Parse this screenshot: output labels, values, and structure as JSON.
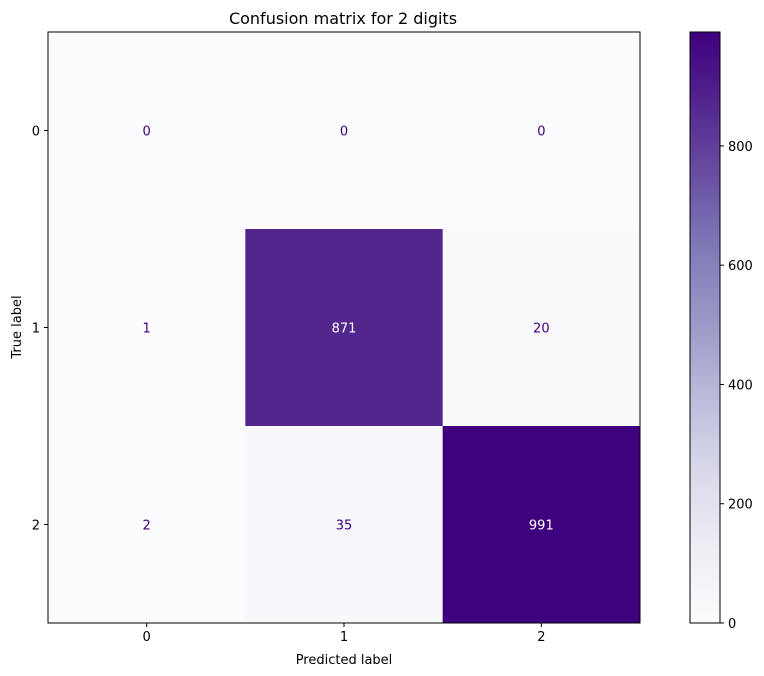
{
  "chart_data": {
    "type": "heatmap",
    "title": "Confusion matrix for 2 digits",
    "xlabel": "Predicted label",
    "ylabel": "True label",
    "x_categories": [
      "0",
      "1",
      "2"
    ],
    "y_categories": [
      "0",
      "1",
      "2"
    ],
    "values": [
      [
        0,
        0,
        0
      ],
      [
        1,
        871,
        20
      ],
      [
        2,
        35,
        991
      ]
    ],
    "colormap": "Purples",
    "colorbar": {
      "range": [
        0,
        991
      ],
      "ticks": [
        0,
        200,
        400,
        600,
        800
      ]
    },
    "grid": false
  }
}
